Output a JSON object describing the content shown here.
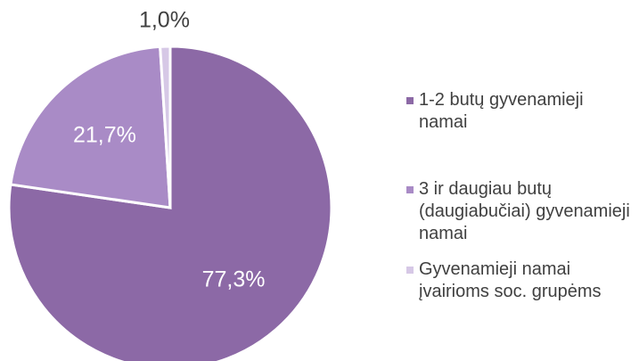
{
  "chart_data": {
    "type": "pie",
    "categories": [
      "1-2 butų gyvenamieji namai",
      "3 ir daugiau butų (daugiabučiai) gyvenamieji namai",
      "Gyvenamieji namai įvairioms soc. grupėms"
    ],
    "values": [
      77.3,
      21.7,
      1.0
    ],
    "value_labels": [
      "77,3%",
      "21,7%",
      "1,0%"
    ],
    "colors": [
      "#8c69a6",
      "#a98bc6",
      "#d6c8e6"
    ],
    "legend": "right"
  }
}
